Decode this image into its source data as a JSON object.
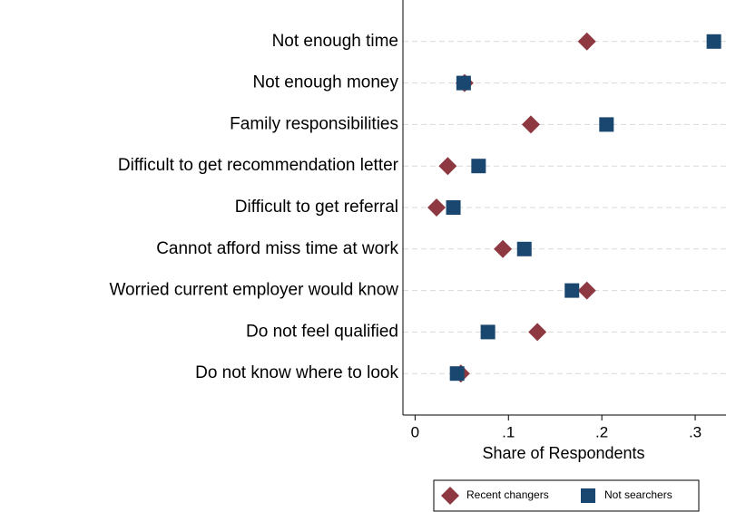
{
  "chart_data": {
    "type": "dot",
    "categories": [
      "Not enough time",
      "Not enough money",
      "Family responsibilities",
      "Difficult to get recommendation letter",
      "Difficult to get referral",
      "Cannot afford miss time at work",
      "Worried current employer would know",
      "Do not feel qualified",
      "Do not know where to look"
    ],
    "series": [
      {
        "name": "Recent changers",
        "color": "#8e3941",
        "marker": "diamond",
        "values": [
          0.184,
          0.053,
          0.124,
          0.035,
          0.023,
          0.094,
          0.184,
          0.131,
          0.049
        ]
      },
      {
        "name": "Not searchers",
        "color": "#1a476f",
        "marker": "square",
        "values": [
          0.32,
          0.052,
          0.205,
          0.068,
          0.041,
          0.117,
          0.168,
          0.078,
          0.045
        ]
      }
    ],
    "x_label": "Share of Respondents",
    "xlim": [
      -0.013,
      0.333
    ],
    "xticks": [
      0,
      {
        "value": 0.1,
        "label": ".1"
      },
      {
        "value": 0.2,
        "label": ".2"
      },
      {
        "value": 0.3,
        "label": ".3"
      }
    ],
    "grid": true,
    "legend": "bottom"
  }
}
